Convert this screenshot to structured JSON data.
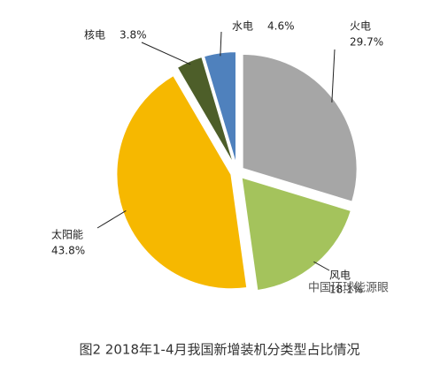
{
  "chart_data": {
    "type": "pie",
    "title": "图2 2018年1-4月我国新增装机分类型占比情况",
    "categories": [
      "火电",
      "风电",
      "太阳能",
      "核电",
      "水电"
    ],
    "values": [
      29.7,
      18.1,
      43.8,
      3.8,
      4.6
    ],
    "value_labels": [
      "29.7%",
      "18.1%",
      "43.8%",
      "3.8%",
      "4.6%"
    ],
    "colors": [
      "#a6a6a6",
      "#a4c35c",
      "#f6b800",
      "#4d5e29",
      "#4f81bd"
    ],
    "watermark": "中国环球能源眼"
  }
}
